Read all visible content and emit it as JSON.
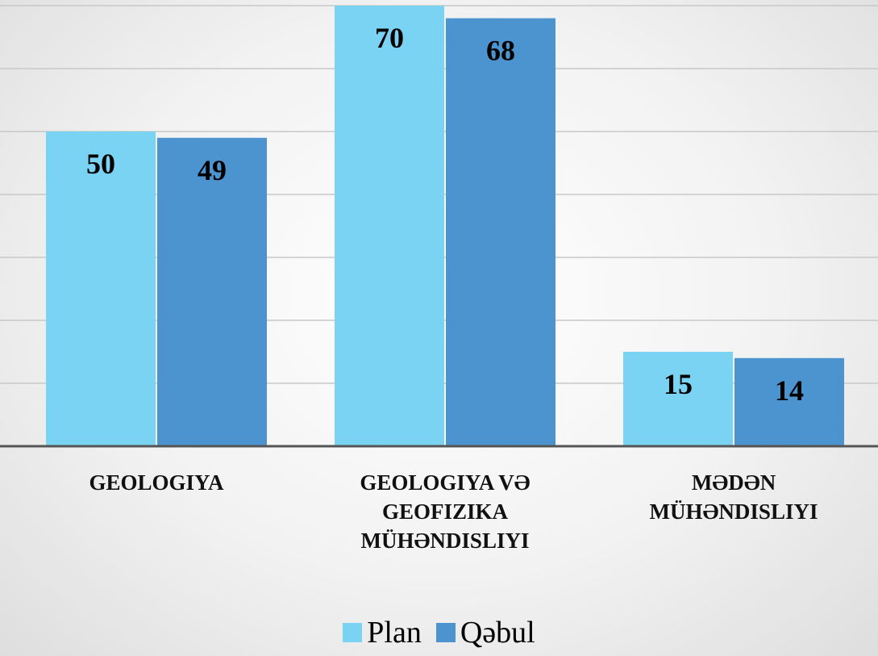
{
  "chart_data": {
    "type": "bar",
    "categories": [
      "GEOLOGIYA",
      "GEOLOGIYA VƏ GEOFIZIKA MÜHƏNDISLIYI",
      "MƏDƏN MÜHƏNDISLIYI"
    ],
    "series": [
      {
        "name": "Plan",
        "color": "#7ad3f2",
        "values": [
          50,
          70,
          15
        ]
      },
      {
        "name": "Qəbul",
        "color": "#4b94d0",
        "values": [
          49,
          68,
          14
        ]
      }
    ],
    "ylim": [
      0,
      70
    ],
    "yticks": [
      0,
      10,
      20,
      30,
      40,
      50,
      60,
      70
    ],
    "grid": true,
    "legend": "bottom"
  }
}
